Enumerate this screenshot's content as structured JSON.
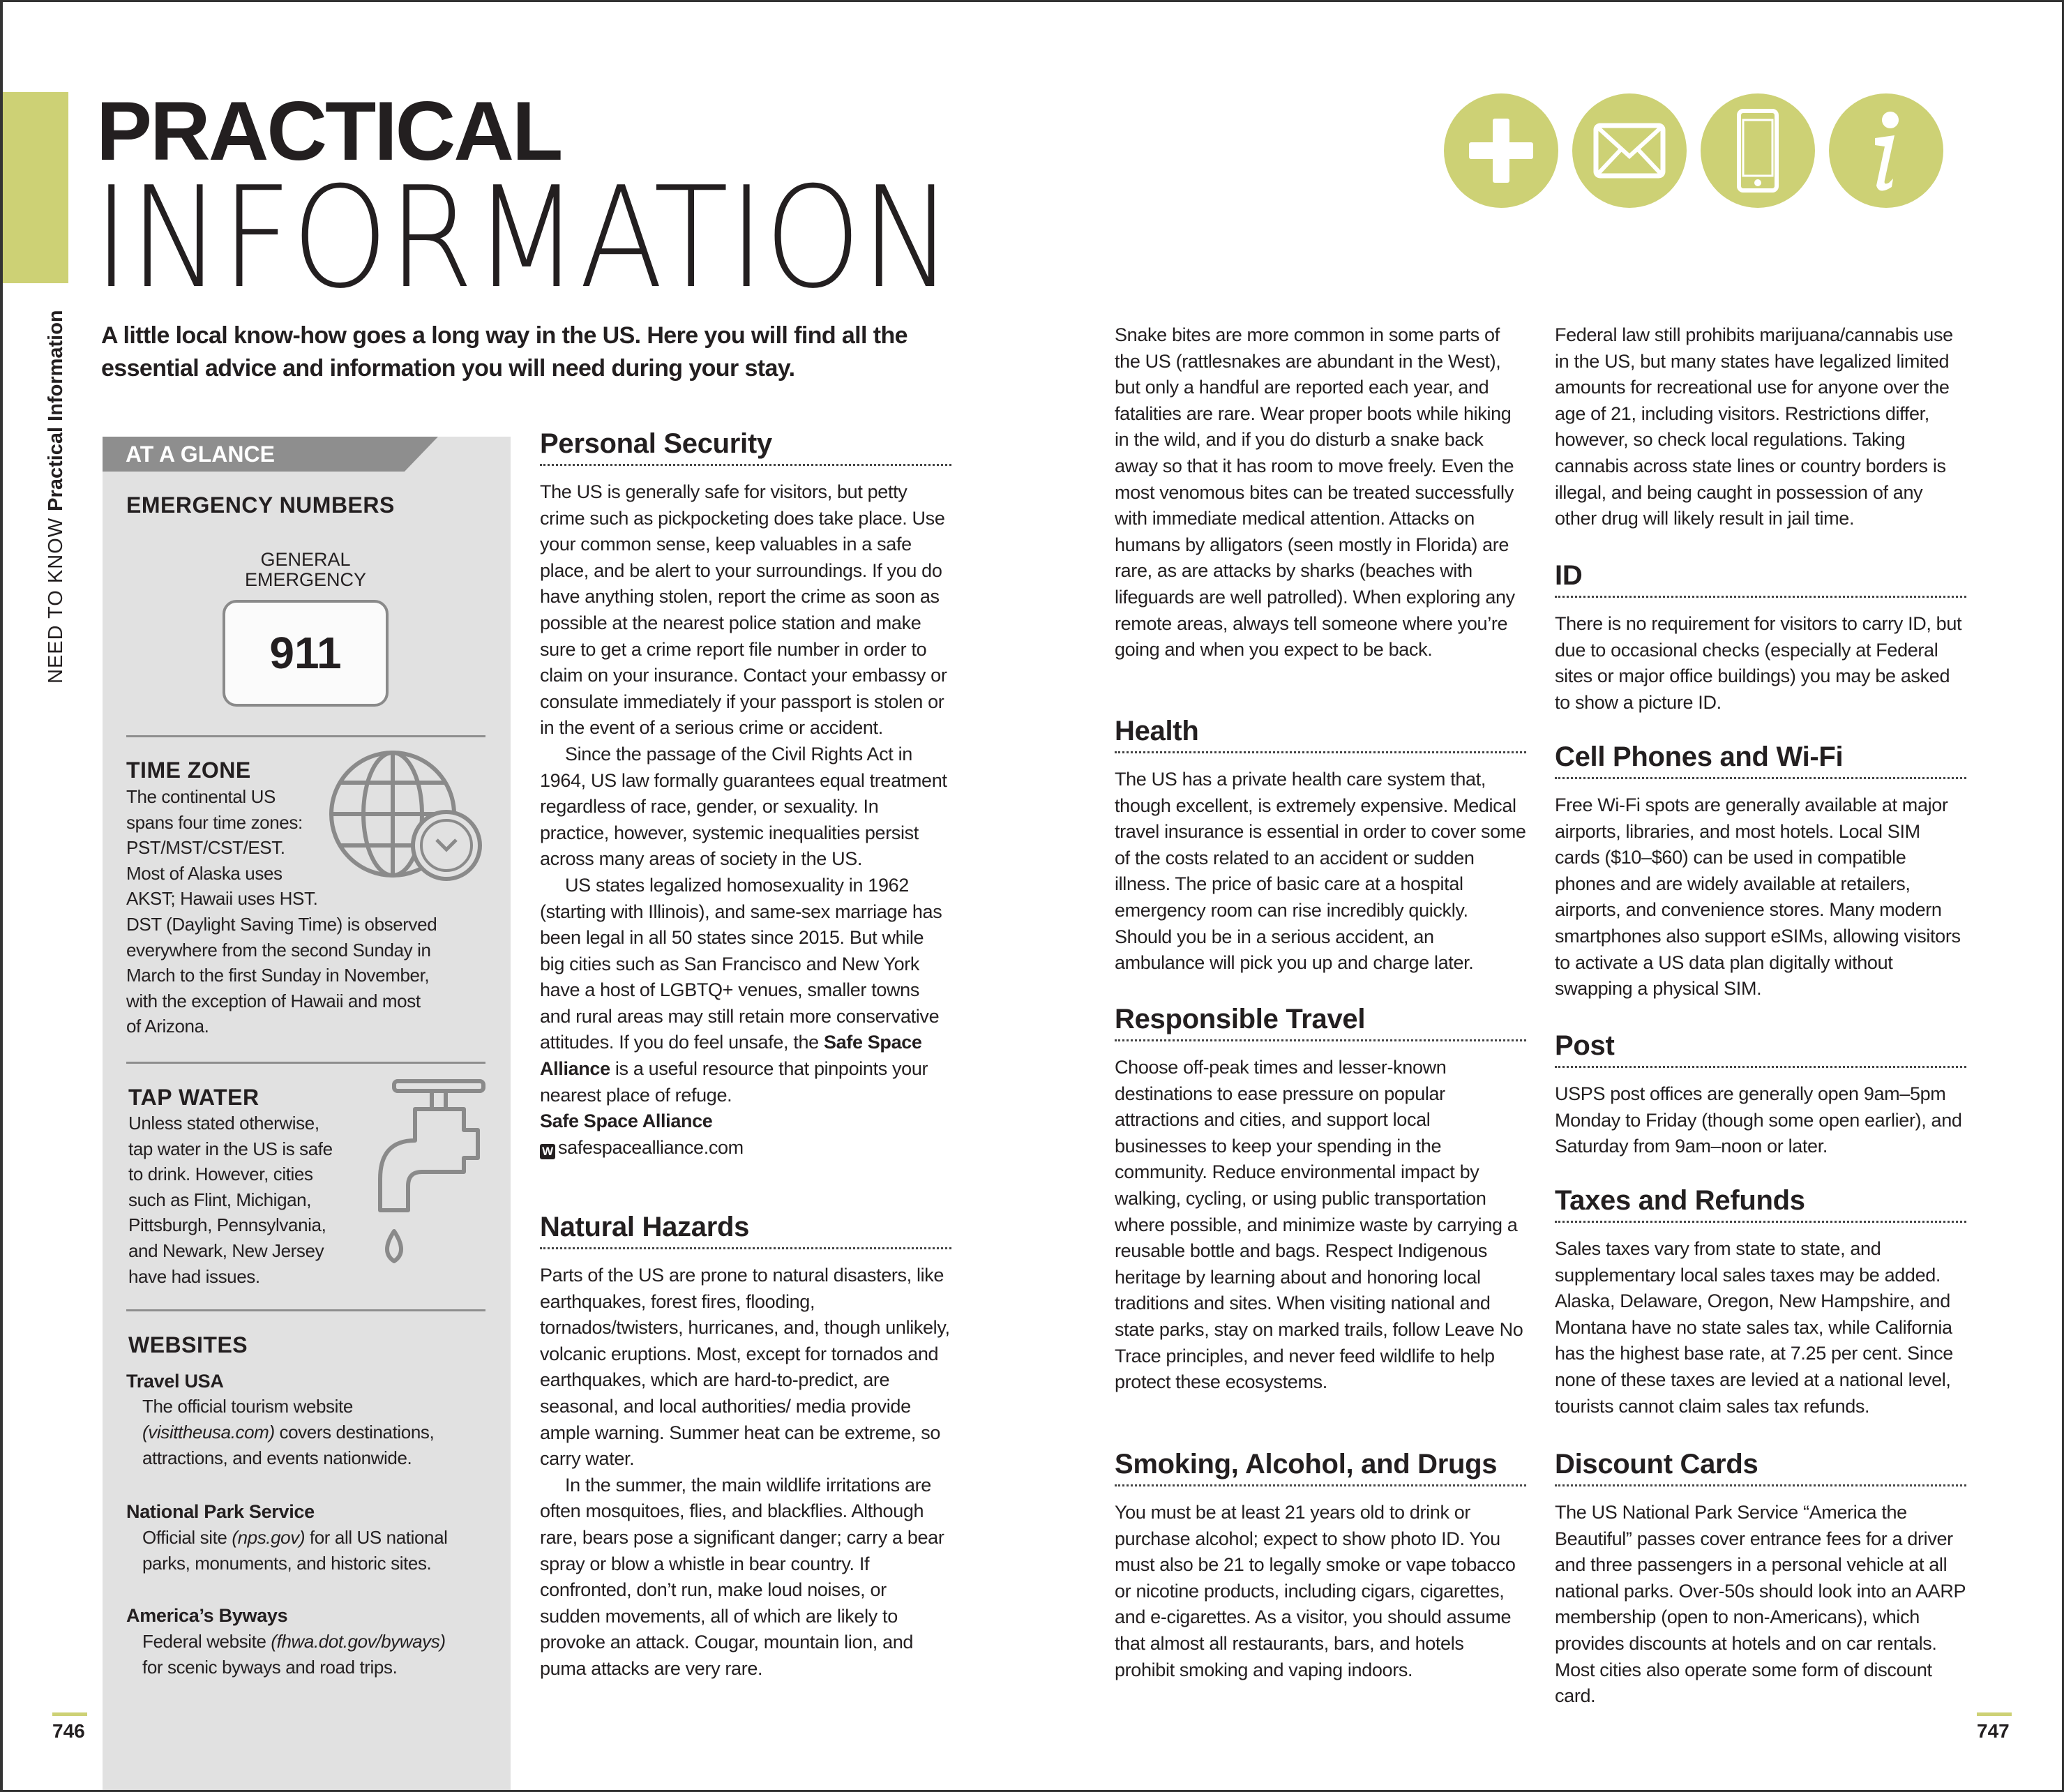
{
  "title": {
    "line1": "PRACTICAL",
    "line2": "INFORMATION"
  },
  "vertical_label": {
    "section": "NEED TO KNOW",
    "page": "Practical Information"
  },
  "intro": "A little local know-how goes a long way in the US. Here you will find all the essential advice and information you will need during your stay.",
  "header_icons": [
    "plus-icon",
    "envelope-icon",
    "mobile-phone-icon",
    "info-icon"
  ],
  "colors": {
    "accent": "#cdd175",
    "sidebar_bg": "#e1e1e1",
    "banner": "#8e8e8e"
  },
  "sidebar": {
    "banner": "AT A GLANCE",
    "emergency": {
      "heading": "EMERGENCY NUMBERS",
      "label_line1": "GENERAL",
      "label_line2": "EMERGENCY",
      "number": "911"
    },
    "time_zone": {
      "heading": "TIME ZONE",
      "lines": [
        "The continental US",
        "spans four time zones:",
        "PST/MST/CST/EST.",
        "Most of Alaska uses",
        "AKST; Hawaii uses HST.",
        "DST (Daylight Saving Time) is observed",
        "everywhere from the second Sunday in",
        "March to the first Sunday in November,",
        "with the exception of Hawaii and most",
        "of Arizona."
      ]
    },
    "tap_water": {
      "heading": "TAP WATER",
      "lines": [
        "Unless stated otherwise,",
        "tap water in the US is safe",
        "to drink. However, cities",
        "such as Flint, Michigan,",
        "Pittsburgh, Pennsylvania,",
        "and Newark, New Jersey",
        "have had issues."
      ]
    },
    "websites": {
      "heading": "WEBSITES",
      "items": [
        {
          "title": "Travel USA",
          "line1_pre": "The official tourism website",
          "line2_italic": "(visittheusa.com)",
          "line2_post": " covers destinations,",
          "line3": "attractions, and events nationwide."
        },
        {
          "title": "National Park Service",
          "line1_pre": "Official site ",
          "line1_italic": "(nps.gov)",
          "line1_post": " for all US national",
          "line2": "parks, monuments, and historic sites."
        },
        {
          "title": "America’s Byways",
          "line1_pre": "Federal website ",
          "line1_italic": "(fhwa.dot.gov/byways)",
          "line2": "for scenic byways and road trips."
        }
      ]
    }
  },
  "sections": {
    "personal_security": {
      "heading": "Personal Security",
      "p1": "The US is generally safe for visitors, but petty crime such as pickpocketing does take place. Use your common sense, keep valuables in a safe place, and be alert to your surroundings. If you do have anything stolen, report the crime as soon as possible at the nearest police station and make sure to get a crime report file number in order to claim on your insurance. Contact your embassy or consulate immediately if your passport is stolen or in the event of a serious crime or accident.",
      "p2": "Since the passage of the Civil Rights Act in 1964, US law formally guarantees equal treatment regardless of race, gender, or sexuality. In practice, however, systemic inequalities persist across many areas of society in the US.",
      "p3_pre": "US states legalized homosexuality in 1962 (starting with Illinois), and same-sex marriage has been legal in all 50 states since 2015. But while big cities such as San Francisco and New York have a host of LGBTQ+ venues, smaller towns and rural areas may still retain more conservative attitudes. If you do feel unsafe, the ",
      "p3_bold": "Safe Space Alliance",
      "p3_post": " is a useful resource that pinpoints your nearest place of refuge.",
      "resource_name": "Safe Space Alliance",
      "resource_icon": "W",
      "resource_url": "safespacealliance.com"
    },
    "natural_hazards": {
      "heading": "Natural Hazards",
      "p1": "Parts of the US are prone to natural disasters, like earthquakes, forest fires, flooding, tornados/twisters, hurricanes, and, though unlikely, volcanic eruptions. Most, except for tornados and earthquakes, which are hard-to-predict, are seasonal, and local authorities/ media provide ample warning. Summer heat can be extreme, so carry water.",
      "p2": "In the summer, the main wildlife irritations are often mosquitoes, flies, and blackflies. Although rare, bears pose a significant danger; carry a bear spray or blow a whistle in bear country. If confronted, don’t run, make loud noises, or sudden movements, all of which are likely to provoke an attack. Cougar, mountain lion, and puma attacks are very rare."
    },
    "hazards_cont": "Snake bites are more common in some parts of the US (rattlesnakes are abundant in the West), but only a handful are reported each year, and fatalities are rare. Wear proper boots while hiking in the wild, and if you do disturb a snake back away so that it has room to move freely. Even the most venomous bites can be treated successfully with immediate medical attention. Attacks on humans by alligators (seen mostly in Florida) are rare, as are attacks by sharks (beaches with lifeguards are well patrolled). When exploring any remote areas, always tell someone where you’re going and when you expect to be back.",
    "health": {
      "heading": "Health",
      "p1": "The US has a private health care system that, though excellent, is extremely expensive. Medical travel insurance is essential in order to cover some of the costs related to an accident or sudden illness. The price of basic care at a hospital emergency room can rise incredibly quickly. Should you be in a serious accident, an ambulance will pick you up and charge later."
    },
    "responsible_travel": {
      "heading": "Responsible Travel",
      "p1": "Choose off-peak times and lesser-known destinations to ease pressure on popular attractions and cities, and support local businesses to keep your spending in the community. Reduce environmental impact by walking, cycling, or using public transportation where possible, and minimize waste by carrying a reusable bottle and bags. Respect Indigenous heritage by learning about and honoring local traditions and sites. When visiting national and state parks, stay on marked trails, follow Leave No Trace principles, and never feed wildlife to help protect these ecosystems."
    },
    "smoking": {
      "heading": "Smoking, Alcohol, and Drugs",
      "p1": "You must be at least 21 years old to drink or purchase alcohol; expect to show photo ID. You must also be 21 to legally smoke or vape tobacco or nicotine products, including cigars, cigarettes, and e-cigarettes. As a visitor, you should assume that almost all restaurants, bars, and hotels prohibit smoking and vaping indoors."
    },
    "smoking_cont": "Federal law still prohibits marijuana/cannabis use in the US, but many states have legalized limited amounts for recreational use for anyone over the age of 21, including visitors. Restrictions differ, however, so check local regulations. Taking cannabis across state lines or country borders is illegal, and being caught in possession of any other drug will likely result in jail time.",
    "id": {
      "heading": "ID",
      "p1": "There is no requirement for visitors to carry ID, but due to occasional checks (especially at Federal sites or major office buildings) you may be asked to show a picture ID."
    },
    "cell_phones": {
      "heading": "Cell Phones and Wi-Fi",
      "p1": "Free Wi-Fi spots are generally available at major airports, libraries, and most hotels. Local SIM cards ($10–$60) can be used in compatible phones and are widely available at retailers, airports, and convenience stores. Many modern smartphones also support eSIMs, allowing visitors to activate a US data plan digitally without swapping a physical SIM."
    },
    "post": {
      "heading": "Post",
      "p1": "USPS post offices are generally open 9am–5pm Monday to Friday (though some open earlier), and Saturday from 9am–noon or later."
    },
    "taxes": {
      "heading": "Taxes and Refunds",
      "p1": "Sales taxes vary from state to state, and supplementary local sales taxes may be added. Alaska, Delaware, Oregon, New Hampshire, and Montana have no state sales tax, while California has the highest base rate, at 7.25 per cent. Since none of these taxes are levied at a national level, tourists cannot claim sales tax refunds."
    },
    "discount": {
      "heading": "Discount Cards",
      "p1": "The US National Park Service “America the Beautiful” passes cover entrance fees for a driver and three passengers in a personal vehicle at all national parks. Over-50s should look into an AARP membership (open to non-Americans), which provides discounts at hotels and on car rentals. Most cities also operate some form of discount card."
    }
  },
  "page_numbers": {
    "left": "746",
    "right": "747"
  }
}
